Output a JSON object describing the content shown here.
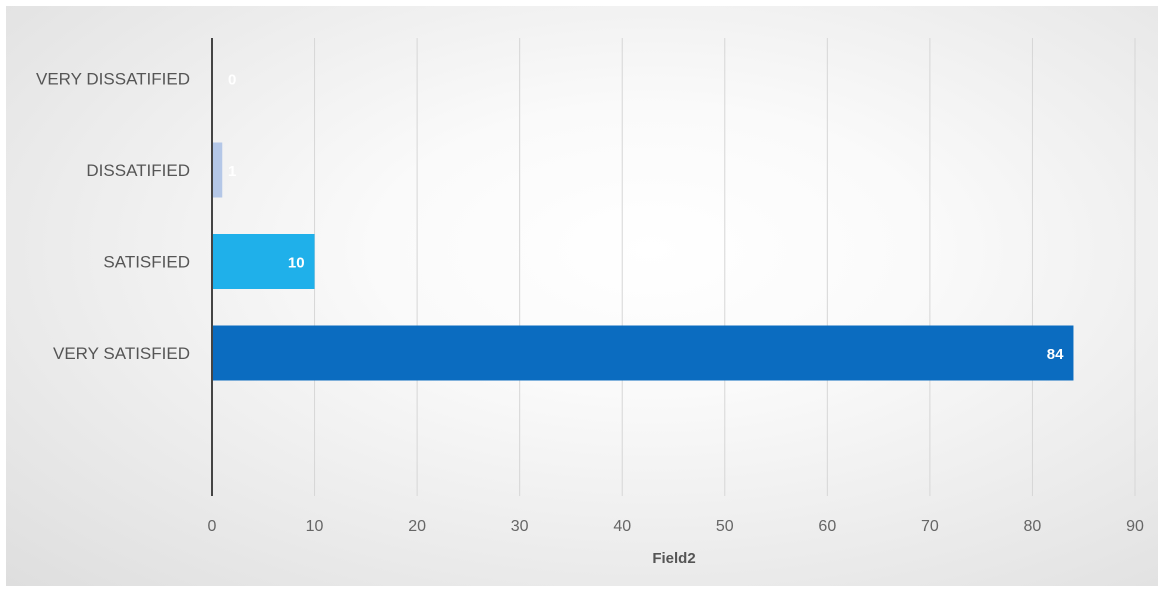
{
  "chart_data": {
    "type": "bar",
    "orientation": "horizontal",
    "categories": [
      "VERY DISSATIFIED",
      "DISSATIFIED",
      "SATISFIED",
      "VERY SATISFIED"
    ],
    "values": [
      0,
      1,
      10,
      84
    ],
    "data_labels": [
      "0",
      "1",
      "10",
      "84"
    ],
    "colors": [
      "#1f6fc1",
      "#b4c7e7",
      "#1fb0ea",
      "#0b6cc0"
    ],
    "xlabel": "Field2",
    "xlim": [
      0,
      90
    ],
    "x_ticks": [
      0,
      10,
      20,
      30,
      40,
      50,
      60,
      70,
      80,
      90
    ],
    "x_tick_labels": [
      "0",
      "10",
      "20",
      "30",
      "40",
      "50",
      "60",
      "70",
      "80",
      "90"
    ],
    "grid": true,
    "legend": "none"
  }
}
